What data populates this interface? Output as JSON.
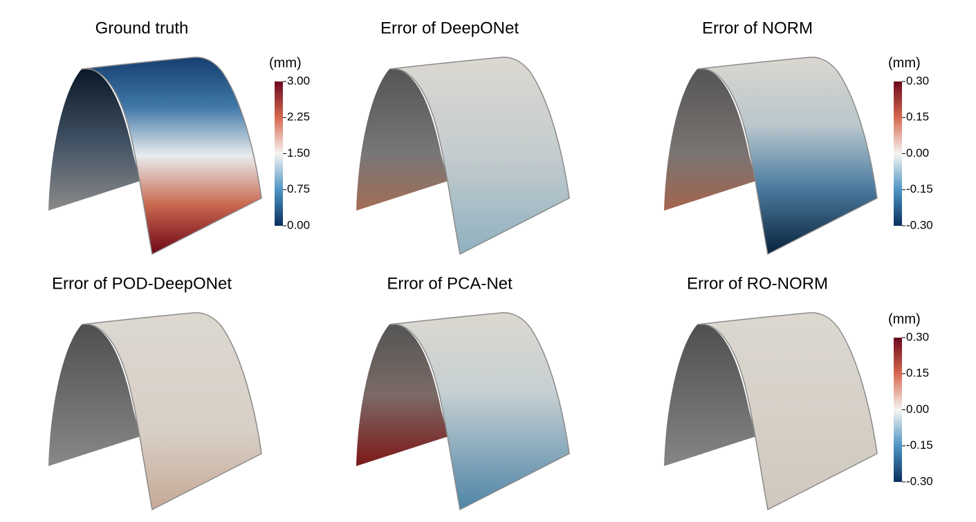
{
  "panels": [
    {
      "title": "Ground truth"
    },
    {
      "title": "Error of DeepONet"
    },
    {
      "title": "Error of NORM"
    },
    {
      "title": "Error of POD-DeepONet"
    },
    {
      "title": "Error of PCA-Net"
    },
    {
      "title": "Error of RO-NORM"
    }
  ],
  "colorbars": [
    {
      "unit": "(mm)",
      "ticks": [
        "3.00",
        "2.25",
        "1.50",
        "0.75",
        "0.00"
      ]
    },
    {
      "unit": "(mm)",
      "ticks": [
        "0.30",
        "0.15",
        "0.00",
        "-0.15",
        "-0.30"
      ]
    },
    {
      "unit": "(mm)",
      "ticks": [
        "0.30",
        "0.15",
        "0.00",
        "-0.15",
        "-0.30"
      ]
    }
  ]
}
